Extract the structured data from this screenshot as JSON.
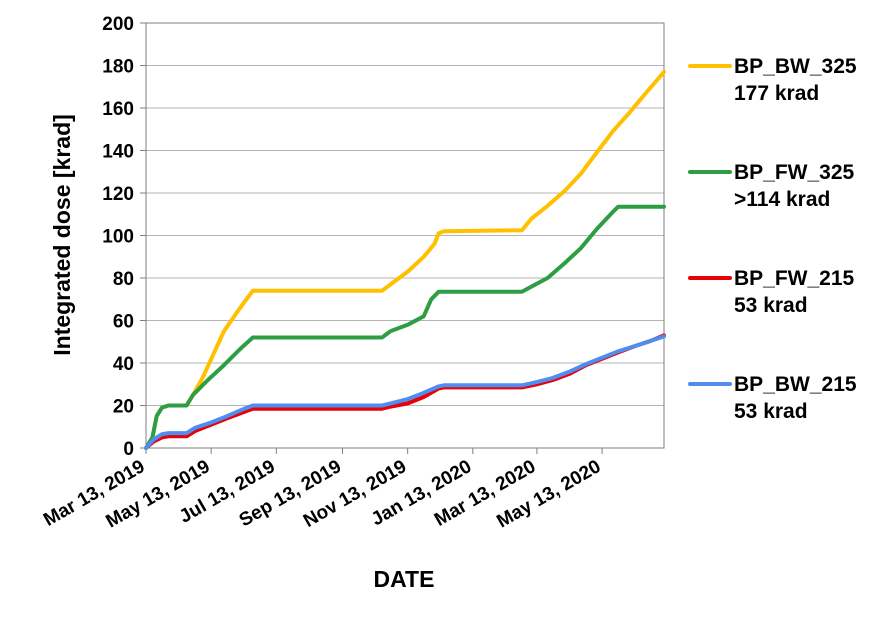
{
  "chart_data": {
    "type": "line",
    "xlabel": "DATE",
    "ylabel": "Integrated dose [krad]",
    "ylim": [
      0,
      200
    ],
    "yticks": [
      0,
      20,
      40,
      60,
      80,
      100,
      120,
      140,
      160,
      180,
      200
    ],
    "xlim": [
      "2019-03-13",
      "2020-07-10"
    ],
    "xticks": [
      {
        "date": "2019-03-13",
        "label": "Mar 13, 2019"
      },
      {
        "date": "2019-05-13",
        "label": "May 13, 2019"
      },
      {
        "date": "2019-07-13",
        "label": "Jul 13, 2019"
      },
      {
        "date": "2019-09-13",
        "label": "Sep 13, 2019"
      },
      {
        "date": "2019-11-13",
        "label": "Nov 13, 2019"
      },
      {
        "date": "2020-01-13",
        "label": "Jan 13, 2020"
      },
      {
        "date": "2020-03-13",
        "label": "Mar 13, 2020"
      },
      {
        "date": "2020-05-13",
        "label": "May 13, 2020"
      }
    ],
    "grid": "horizontal",
    "legend_position": "right",
    "series": [
      {
        "name": "BP_BW_325",
        "note": "177 krad",
        "color": "#FFC000",
        "points": [
          [
            "2019-03-13",
            0
          ],
          [
            "2019-03-19",
            5
          ],
          [
            "2019-03-23",
            15
          ],
          [
            "2019-03-28",
            19
          ],
          [
            "2019-04-03",
            20
          ],
          [
            "2019-04-20",
            20
          ],
          [
            "2019-04-26",
            25
          ],
          [
            "2019-05-05",
            33
          ],
          [
            "2019-05-15",
            44
          ],
          [
            "2019-05-25",
            55
          ],
          [
            "2019-06-05",
            63
          ],
          [
            "2019-06-15",
            70
          ],
          [
            "2019-06-21",
            74
          ],
          [
            "2019-10-20",
            74
          ],
          [
            "2019-10-28",
            77
          ],
          [
            "2019-11-13",
            83
          ],
          [
            "2019-11-28",
            90
          ],
          [
            "2019-12-08",
            96
          ],
          [
            "2019-12-12",
            101
          ],
          [
            "2019-12-17",
            102
          ],
          [
            "2020-02-28",
            102.5
          ],
          [
            "2020-03-08",
            108
          ],
          [
            "2020-03-23",
            114
          ],
          [
            "2020-04-08",
            121
          ],
          [
            "2020-04-23",
            129
          ],
          [
            "2020-05-08",
            139
          ],
          [
            "2020-05-23",
            149
          ],
          [
            "2020-06-08",
            158
          ],
          [
            "2020-06-23",
            167
          ],
          [
            "2020-07-10",
            177
          ]
        ]
      },
      {
        "name": "BP_FW_325",
        "note": ">114 krad",
        "color": "#2E9E44",
        "points": [
          [
            "2019-03-13",
            0
          ],
          [
            "2019-03-19",
            5
          ],
          [
            "2019-03-23",
            15
          ],
          [
            "2019-03-28",
            19
          ],
          [
            "2019-04-03",
            20
          ],
          [
            "2019-04-20",
            20
          ],
          [
            "2019-04-26",
            25
          ],
          [
            "2019-05-10",
            32
          ],
          [
            "2019-05-25",
            39
          ],
          [
            "2019-06-10",
            47
          ],
          [
            "2019-06-21",
            52
          ],
          [
            "2019-10-20",
            52
          ],
          [
            "2019-10-28",
            55
          ],
          [
            "2019-11-13",
            58
          ],
          [
            "2019-11-28",
            62
          ],
          [
            "2019-12-05",
            70
          ],
          [
            "2019-12-12",
            73.5
          ],
          [
            "2020-02-28",
            73.5
          ],
          [
            "2020-03-08",
            76
          ],
          [
            "2020-03-23",
            80
          ],
          [
            "2020-04-08",
            87
          ],
          [
            "2020-04-23",
            94
          ],
          [
            "2020-05-08",
            103
          ],
          [
            "2020-05-23",
            111
          ],
          [
            "2020-05-28",
            113.5
          ],
          [
            "2020-07-10",
            113.5
          ]
        ]
      },
      {
        "name": "BP_FW_215",
        "note": "53 krad",
        "color": "#E8000B",
        "points": [
          [
            "2019-03-13",
            0
          ],
          [
            "2019-03-20",
            3
          ],
          [
            "2019-03-28",
            5
          ],
          [
            "2019-04-03",
            5.5
          ],
          [
            "2019-04-20",
            5.5
          ],
          [
            "2019-04-28",
            8
          ],
          [
            "2019-05-13",
            11
          ],
          [
            "2019-05-28",
            14
          ],
          [
            "2019-06-13",
            17
          ],
          [
            "2019-06-21",
            18.5
          ],
          [
            "2019-10-20",
            18.5
          ],
          [
            "2019-10-28",
            19.5
          ],
          [
            "2019-11-13",
            21
          ],
          [
            "2019-11-28",
            24
          ],
          [
            "2019-12-12",
            28
          ],
          [
            "2019-12-17",
            28.5
          ],
          [
            "2020-02-28",
            28.5
          ],
          [
            "2020-03-13",
            30
          ],
          [
            "2020-03-28",
            32
          ],
          [
            "2020-04-13",
            35
          ],
          [
            "2020-04-28",
            39
          ],
          [
            "2020-05-13",
            42
          ],
          [
            "2020-05-28",
            45
          ],
          [
            "2020-06-13",
            48
          ],
          [
            "2020-06-28",
            50.5
          ],
          [
            "2020-07-10",
            53
          ]
        ]
      },
      {
        "name": "BP_BW_215",
        "note": "53 krad",
        "color": "#4F8EF0",
        "points": [
          [
            "2019-03-13",
            0
          ],
          [
            "2019-03-20",
            4
          ],
          [
            "2019-03-28",
            6.5
          ],
          [
            "2019-04-03",
            7
          ],
          [
            "2019-04-20",
            7
          ],
          [
            "2019-04-28",
            9.5
          ],
          [
            "2019-05-13",
            12
          ],
          [
            "2019-05-28",
            15
          ],
          [
            "2019-06-13",
            18.5
          ],
          [
            "2019-06-21",
            20
          ],
          [
            "2019-10-20",
            20
          ],
          [
            "2019-10-28",
            21
          ],
          [
            "2019-11-13",
            23
          ],
          [
            "2019-11-28",
            26
          ],
          [
            "2019-12-12",
            29
          ],
          [
            "2019-12-17",
            29.5
          ],
          [
            "2020-02-28",
            29.5
          ],
          [
            "2020-03-13",
            31
          ],
          [
            "2020-03-28",
            33
          ],
          [
            "2020-04-13",
            36
          ],
          [
            "2020-04-28",
            39.5
          ],
          [
            "2020-05-13",
            42.5
          ],
          [
            "2020-05-28",
            45.5
          ],
          [
            "2020-06-13",
            48
          ],
          [
            "2020-06-28",
            50.5
          ],
          [
            "2020-07-10",
            52.5
          ]
        ]
      }
    ]
  }
}
